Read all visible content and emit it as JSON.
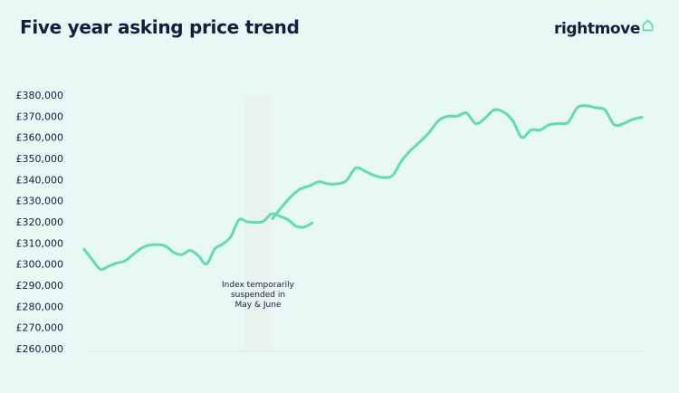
{
  "header": {
    "title": "Five year asking price trend",
    "brand": "rightmove",
    "brand_icon": "house-outline-icon"
  },
  "colors": {
    "background": "#e8f8f4",
    "line": "#5fdcb0",
    "text": "#0f1f3d",
    "suspended_band": "#e9f2ef",
    "baseline": "#d6e6e1"
  },
  "chart_data": {
    "type": "line",
    "title": "Five year asking price trend",
    "xlabel": "",
    "ylabel": "",
    "ylim": [
      260000,
      380000
    ],
    "y_ticks": [
      "£380,000",
      "£370,000",
      "£360,000",
      "£350,000",
      "£340,000",
      "£330,000",
      "£320,000",
      "£310,000",
      "£300,000",
      "£290,000",
      "£280,000",
      "£270,000",
      "£260,000"
    ],
    "grid": false,
    "legend": "none",
    "annotation": "Index temporarily suspended in May & June",
    "annotation_lines": [
      "Index temporarily",
      "suspended in",
      "May & June"
    ],
    "suspended_after_index": 28,
    "series": [
      {
        "values": [
          307000,
          302000,
          297500,
          299000,
          300500,
          301500,
          304500,
          307500,
          309000,
          309200,
          308500,
          305500,
          304500,
          306500,
          304000,
          300000,
          307000,
          309500,
          313000,
          321000,
          320000,
          319800,
          320300,
          323800,
          322700,
          321000,
          318000,
          317500,
          319500,
          321500,
          327000,
          332000,
          335500,
          337000,
          339000,
          338000,
          338000,
          339500,
          345500,
          344000,
          342000,
          341000,
          342000,
          349000,
          354000,
          358000,
          362500,
          368000,
          370000,
          370000,
          371500,
          366500,
          369000,
          373000,
          372000,
          368000,
          360000,
          363500,
          363500,
          366000,
          366500,
          367000,
          374000,
          375000,
          374000,
          373000,
          366000,
          366500,
          368500,
          369500
        ]
      }
    ]
  }
}
